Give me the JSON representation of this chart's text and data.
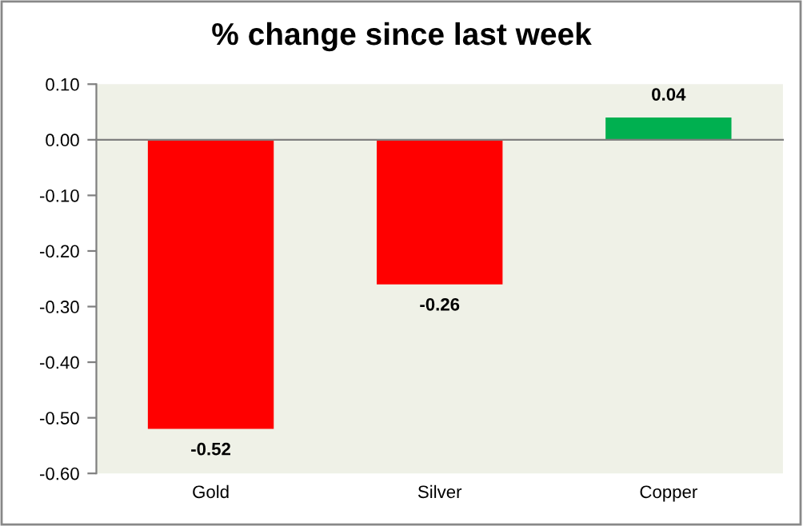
{
  "chart_data": {
    "type": "bar",
    "title": "% change since last week",
    "categories": [
      "Gold",
      "Silver",
      "Copper"
    ],
    "values": [
      -0.52,
      -0.26,
      0.04
    ],
    "colors": [
      "#ff0000",
      "#ff0000",
      "#00b050"
    ],
    "value_labels": [
      "-0.52",
      "-0.26",
      "0.04"
    ],
    "ylim": [
      -0.6,
      0.1
    ],
    "yticks": [
      {
        "value": -0.6,
        "label": "-0.60"
      },
      {
        "value": -0.5,
        "label": "-0.50"
      },
      {
        "value": -0.4,
        "label": "-0.40"
      },
      {
        "value": -0.3,
        "label": "-0.30"
      },
      {
        "value": -0.2,
        "label": "-0.20"
      },
      {
        "value": -0.1,
        "label": "-0.10"
      },
      {
        "value": 0,
        "label": "0.00"
      },
      {
        "value": 0.1,
        "label": "0.10"
      }
    ]
  }
}
